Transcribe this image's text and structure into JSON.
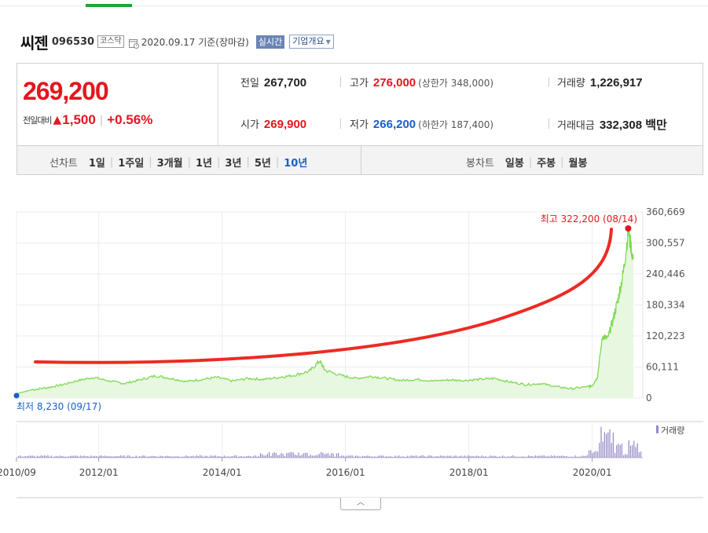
{
  "header": {
    "name": "씨젠",
    "code": "096530",
    "market": "코스닥",
    "date_text": "2020.09.17  기준(장마감)",
    "realtime_label": "실시간",
    "company_label": "기업개요"
  },
  "quote": {
    "price": "269,200",
    "change_label": "전일대비",
    "change_amount": "1,500",
    "change_pct": "+0.56%",
    "prev_close": {
      "label": "전일",
      "value": "267,700"
    },
    "open": {
      "label": "시가",
      "value": "269,900"
    },
    "high": {
      "label": "고가",
      "value": "276,000",
      "note": "(상한가 348,000)"
    },
    "low": {
      "label": "저가",
      "value": "266,200",
      "note": "(하한가 187,400)"
    },
    "volume": {
      "label": "거래량",
      "value": "1,226,917"
    },
    "amount": {
      "label": "거래대금",
      "value": "332,308 백만"
    }
  },
  "periods": {
    "label": "선차트",
    "items": [
      "1일",
      "1주일",
      "3개월",
      "1년",
      "3년",
      "5년",
      "10년"
    ],
    "active": "10년",
    "candle_label": "봉차트",
    "candle_items": [
      "일봉",
      "주봉",
      "월봉"
    ]
  },
  "colors": {
    "up": "#e4161e",
    "down": "#1a5fc8",
    "price_line": "#7ed957",
    "price_fill": "#e8f7df",
    "volume": "#9688c7",
    "annotation": "#ee2a24"
  },
  "chart_data": {
    "type": "area",
    "y_ticks": [
      "360,669",
      "300,557",
      "240,446",
      "180,334",
      "120,223",
      "60,111",
      "0"
    ],
    "ylim": [
      0,
      360669
    ],
    "x_ticks": [
      "2010/09",
      "2012/01",
      "2014/01",
      "2016/01",
      "2018/01",
      "2020/01"
    ],
    "max_annotation": "최고 322,200 (08/14)",
    "min_annotation": "최저 8,230 (09/17)",
    "volume_label": "거래량",
    "series": [
      {
        "name": "",
        "x": [
          "2010/09",
          "2010/12",
          "2011/03",
          "2011/06",
          "2011/09",
          "2011/12",
          "2012/03",
          "2012/06",
          "2012/09",
          "2012/12",
          "2013/03",
          "2013/06",
          "2013/09",
          "2013/12",
          "2014/03",
          "2014/06",
          "2014/09",
          "2014/12",
          "2015/03",
          "2015/06",
          "2015/08",
          "2015/09",
          "2015/12",
          "2016/03",
          "2016/06",
          "2016/09",
          "2016/12",
          "2017/03",
          "2017/06",
          "2017/09",
          "2017/12",
          "2018/03",
          "2018/06",
          "2018/09",
          "2018/12",
          "2019/03",
          "2019/06",
          "2019/09",
          "2019/12",
          "2020/01",
          "2020/02",
          "2020/03",
          "2020/04",
          "2020/05",
          "2020/06",
          "2020/07",
          "2020/08",
          "2020/09"
        ],
        "values": [
          8230,
          16000,
          20000,
          26000,
          34000,
          40000,
          33000,
          28000,
          35000,
          43000,
          38000,
          32000,
          36000,
          40000,
          33000,
          38000,
          36000,
          40000,
          44000,
          52000,
          72000,
          54000,
          44000,
          38000,
          42000,
          38000,
          34000,
          36000,
          33000,
          35000,
          34000,
          36000,
          38000,
          31000,
          26000,
          28000,
          22000,
          18000,
          22000,
          24000,
          40000,
          120000,
          115000,
          150000,
          190000,
          240000,
          322200,
          269200
        ]
      }
    ]
  }
}
